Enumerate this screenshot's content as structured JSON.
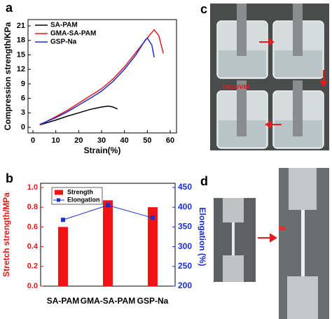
{
  "chart_data": [
    {
      "type": "line",
      "panel_label": "a",
      "x_label": "Strain(%)",
      "y_label": "Compression strength/KPa",
      "xlim": [
        0,
        60
      ],
      "xticks": [
        0,
        10,
        20,
        30,
        40,
        50,
        60
      ],
      "ylim": [
        0,
        21
      ],
      "yticks": [
        0,
        3,
        6,
        9,
        12,
        15,
        18,
        21
      ],
      "legend": "upper left",
      "series": [
        {
          "name": "SA-PAM",
          "color": "#000000",
          "x": [
            3,
            10,
            15,
            20,
            25,
            30,
            33,
            35,
            37
          ],
          "values": [
            0.5,
            1.5,
            2.3,
            3.0,
            3.7,
            4.2,
            4.4,
            4.2,
            3.8
          ]
        },
        {
          "name": "GMA-SA-PAM",
          "color": "#e8191e",
          "x": [
            3,
            10,
            15,
            20,
            25,
            30,
            35,
            40,
            45,
            50,
            53,
            55,
            57
          ],
          "values": [
            0.5,
            2.2,
            3.5,
            5.0,
            6.5,
            8.0,
            10.0,
            12.5,
            15.5,
            18.5,
            20.2,
            19.0,
            15.3
          ]
        },
        {
          "name": "GSP-Na",
          "color": "#1a2fd6",
          "x": [
            3,
            10,
            15,
            20,
            25,
            30,
            35,
            40,
            45,
            49,
            50,
            52,
            53
          ],
          "values": [
            0.6,
            2.0,
            3.2,
            4.6,
            6.0,
            7.5,
            9.5,
            12.0,
            15.0,
            18.0,
            18.5,
            17.0,
            14.5
          ]
        }
      ]
    },
    {
      "type": "bar",
      "panel_label": "b",
      "y_label": "Stretch strength/MPa",
      "y2_label": "Elongation (%)",
      "categories": [
        "SA-PAM",
        "GMA-SA-PAM",
        "GSP-Na"
      ],
      "ylim": [
        0,
        1
      ],
      "yticks": [
        {
          "value": 0,
          "label": "0.0"
        },
        0.2,
        0.4,
        0.6,
        0.8,
        {
          "value": 1,
          "label": "1.0"
        }
      ],
      "y2lim": [
        200,
        450
      ],
      "y2ticks": [
        200,
        250,
        300,
        350,
        400,
        450
      ],
      "legend": "upper left",
      "series": [
        {
          "name": "Strength",
          "color": "#f01414",
          "values": [
            0.6,
            0.87,
            0.8
          ]
        },
        {
          "name": "Elongation",
          "color": "#1a2fd6",
          "type": "line",
          "axis": "y2",
          "values": [
            368,
            405,
            373
          ]
        }
      ]
    }
  ],
  "photos": [
    {
      "panel_label": "c",
      "annotation": "recover"
    },
    {
      "panel_label": "d"
    }
  ]
}
